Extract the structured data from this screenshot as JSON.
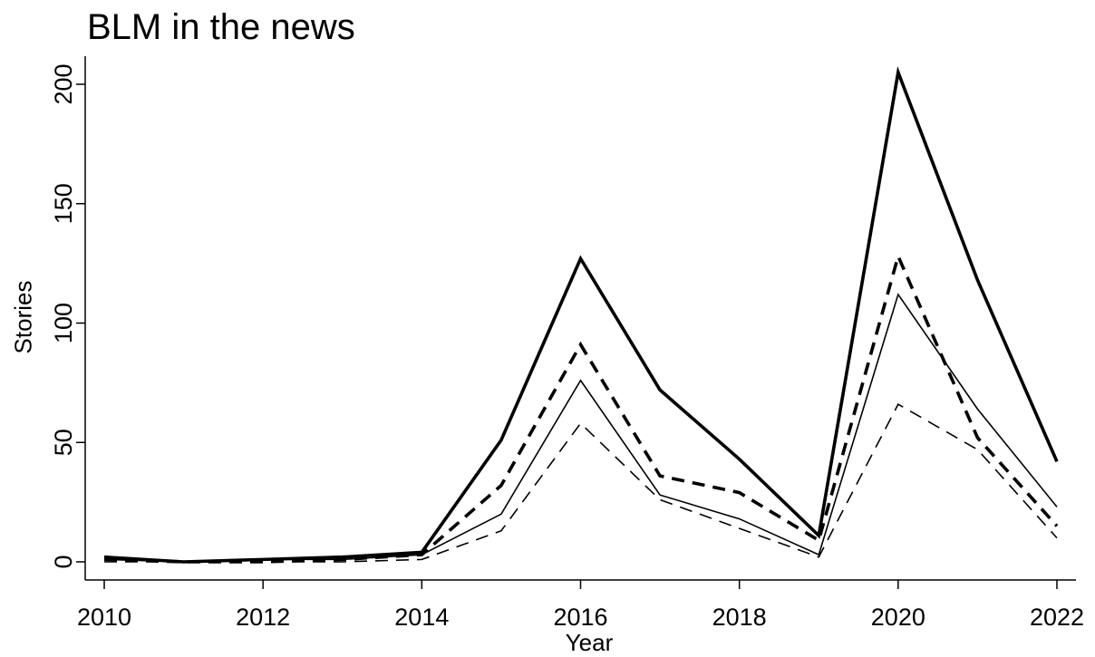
{
  "chart_data": {
    "type": "line",
    "title": "BLM in the news",
    "xlabel": "Year",
    "ylabel": "Stories",
    "x": [
      2010,
      2011,
      2012,
      2013,
      2014,
      2015,
      2016,
      2017,
      2018,
      2019,
      2020,
      2021,
      2022
    ],
    "xlim": [
      2010,
      2022
    ],
    "ylim": [
      -5,
      212
    ],
    "x_ticks": [
      2010,
      2012,
      2014,
      2016,
      2018,
      2020,
      2022
    ],
    "y_ticks": [
      0,
      50,
      100,
      150,
      200
    ],
    "grid": false,
    "legend": "none",
    "series": [
      {
        "style": "thick-solid",
        "values": [
          2,
          0,
          1,
          2,
          4,
          51,
          127,
          72,
          43,
          11,
          205,
          118,
          42
        ]
      },
      {
        "style": "thick-dashed",
        "values": [
          1,
          0,
          0,
          1,
          3,
          32,
          91,
          36,
          29,
          9,
          128,
          52,
          15
        ]
      },
      {
        "style": "thin-solid",
        "values": [
          1,
          0,
          1,
          1,
          3,
          20,
          76,
          28,
          18,
          3,
          112,
          64,
          23
        ]
      },
      {
        "style": "thin-dashed",
        "values": [
          0,
          0,
          0,
          0,
          1,
          13,
          58,
          26,
          14,
          2,
          66,
          47,
          10
        ]
      }
    ]
  }
}
